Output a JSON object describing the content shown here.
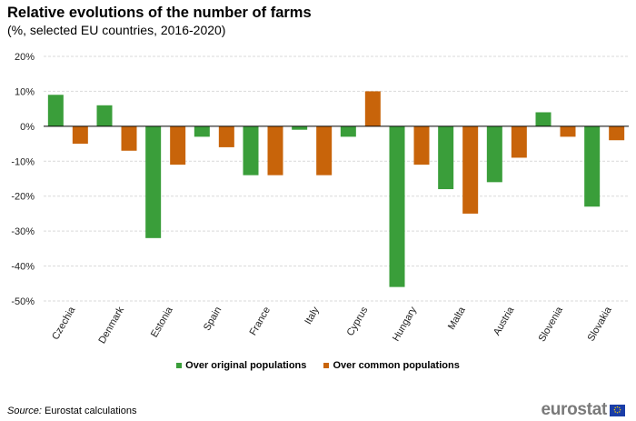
{
  "title": "Relative evolutions of the number of farms",
  "subtitle": "(%, selected EU countries, 2016-2020)",
  "source_prefix": "Source:",
  "source_text": "Eurostat calculations",
  "logo_text": "eurostat",
  "colors": {
    "green": "#3a9e3a",
    "orange": "#c8640a",
    "grid": "#d9d9d9",
    "axis": "#000000"
  },
  "chart_data": {
    "type": "bar",
    "title": "Relative evolutions of the number of farms",
    "subtitle": "(%, selected EU countries, 2016-2020)",
    "ylim": [
      -50,
      20
    ],
    "yticks": [
      20,
      10,
      0,
      -10,
      -20,
      -30,
      -40,
      -50
    ],
    "ytick_labels": [
      "20%",
      "10%",
      "0%",
      "-10%",
      "-20%",
      "-30%",
      "-40%",
      "-50%"
    ],
    "grid": true,
    "legend_position": "bottom",
    "categories": [
      "Czechia",
      "Denmark",
      "Estonia",
      "Spain",
      "France",
      "Italy",
      "Cyprus",
      "Hungary",
      "Malta",
      "Austria",
      "Slovenia",
      "Slovakia"
    ],
    "series": [
      {
        "name": "Over original populations",
        "color": "#3a9e3a",
        "values": [
          9,
          6,
          -32,
          -3,
          -14,
          -1,
          -3,
          -46,
          -18,
          -16,
          4,
          -23
        ]
      },
      {
        "name": "Over common populations",
        "color": "#c8640a",
        "values": [
          -5,
          -7,
          -11,
          -6,
          -14,
          -14,
          10,
          -11,
          -25,
          -9,
          -3,
          -4
        ]
      }
    ]
  }
}
